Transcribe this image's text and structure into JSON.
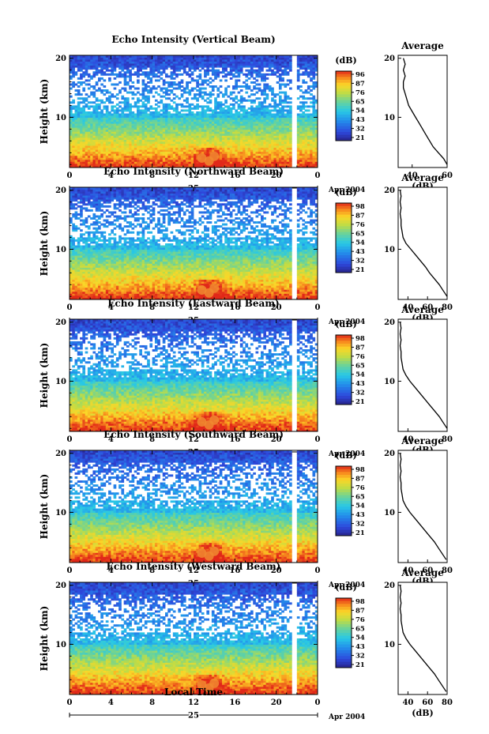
{
  "figure": {
    "date_label": "Apr 2004",
    "day_label": "25",
    "xlabel": "Local Time",
    "ylabel": "Height (km)",
    "colorbar_unit": "(dB)",
    "profile_title": "Average",
    "profile_xlabel": "(dB)"
  },
  "chart_data": [
    {
      "type": "heatmap",
      "title": "Echo Intensity (Vertical Beam)",
      "xlabel": "",
      "ylabel": "Height (km)",
      "x_ticks": [
        "0",
        "4",
        "8",
        "12",
        "16",
        "20",
        "0"
      ],
      "y_ticks": [
        "10",
        "20"
      ],
      "xlim": [
        0,
        24
      ],
      "ylim": [
        1.5,
        20.5
      ],
      "colorbar_ticks": [
        "96",
        "87",
        "76",
        "65",
        "54",
        "43",
        "32",
        "21"
      ],
      "colorbar_range": [
        21,
        96
      ],
      "profile": {
        "xlim": [
          32,
          60
        ],
        "x_ticks": [
          "40",
          "60"
        ],
        "y_ticks": [
          "10",
          "20"
        ],
        "heights": [
          2,
          3,
          4,
          5,
          6,
          7,
          8,
          9,
          10,
          11,
          12,
          13,
          14,
          15,
          16,
          17,
          18,
          19,
          20
        ],
        "values": [
          60,
          58,
          55,
          52,
          50,
          48,
          46,
          44,
          42,
          40,
          38,
          37,
          36,
          35,
          35,
          36,
          35,
          36,
          35
        ]
      }
    },
    {
      "type": "heatmap",
      "title": "Echo Intensity (Northward Beam)",
      "xlabel": "",
      "ylabel": "Height (km)",
      "x_ticks": [
        "0",
        "4",
        "8",
        "12",
        "16",
        "20",
        "0"
      ],
      "y_ticks": [
        "10",
        "20"
      ],
      "xlim": [
        0,
        24
      ],
      "ylim": [
        1.5,
        20.5
      ],
      "colorbar_ticks": [
        "98",
        "87",
        "76",
        "65",
        "54",
        "43",
        "32",
        "21"
      ],
      "colorbar_range": [
        21,
        98
      ],
      "profile": {
        "xlim": [
          30,
          80
        ],
        "x_ticks": [
          "40",
          "60",
          "80"
        ],
        "y_ticks": [
          "10",
          "20"
        ],
        "heights": [
          2,
          3,
          4,
          5,
          6,
          7,
          8,
          9,
          10,
          11,
          12,
          13,
          14,
          15,
          16,
          17,
          18,
          19,
          20
        ],
        "values": [
          80,
          76,
          72,
          67,
          62,
          58,
          53,
          48,
          43,
          38,
          35,
          34,
          33,
          33,
          32,
          33,
          32,
          33,
          32
        ]
      }
    },
    {
      "type": "heatmap",
      "title": "Echo Intensity (Eastward Beam)",
      "xlabel": "",
      "ylabel": "Height (km)",
      "x_ticks": [
        "0",
        "4",
        "8",
        "12",
        "16",
        "20",
        "0"
      ],
      "y_ticks": [
        "10",
        "20"
      ],
      "xlim": [
        0,
        24
      ],
      "ylim": [
        1.5,
        20.5
      ],
      "colorbar_ticks": [
        "98",
        "87",
        "76",
        "65",
        "54",
        "43",
        "32",
        "21"
      ],
      "colorbar_range": [
        21,
        98
      ],
      "profile": {
        "xlim": [
          30,
          80
        ],
        "x_ticks": [
          "40",
          "80"
        ],
        "y_ticks": [
          "10",
          "20"
        ],
        "heights": [
          2,
          3,
          4,
          5,
          6,
          7,
          8,
          9,
          10,
          11,
          12,
          13,
          14,
          15,
          16,
          17,
          18,
          19,
          20
        ],
        "values": [
          80,
          76,
          72,
          67,
          62,
          57,
          52,
          47,
          42,
          38,
          35,
          34,
          33,
          33,
          32,
          33,
          32,
          33,
          32
        ]
      }
    },
    {
      "type": "heatmap",
      "title": "Echo Intensity (Southward Beam)",
      "xlabel": "",
      "ylabel": "Height (km)",
      "x_ticks": [
        "0",
        "4",
        "8",
        "12",
        "16",
        "20",
        "0"
      ],
      "y_ticks": [
        "10",
        "20"
      ],
      "xlim": [
        0,
        24
      ],
      "ylim": [
        1.5,
        20.5
      ],
      "colorbar_ticks": [
        "98",
        "87",
        "76",
        "65",
        "54",
        "43",
        "32",
        "21"
      ],
      "colorbar_range": [
        21,
        98
      ],
      "profile": {
        "xlim": [
          30,
          80
        ],
        "x_ticks": [
          "40",
          "60",
          "80"
        ],
        "y_ticks": [
          "10",
          "20"
        ],
        "heights": [
          2,
          3,
          4,
          5,
          6,
          7,
          8,
          9,
          10,
          11,
          12,
          13,
          14,
          15,
          16,
          17,
          18,
          19,
          20
        ],
        "values": [
          79,
          75,
          71,
          67,
          62,
          57,
          52,
          47,
          42,
          38,
          35,
          34,
          33,
          33,
          32,
          33,
          32,
          33,
          32
        ]
      }
    },
    {
      "type": "heatmap",
      "title": "Echo Intensity (Westward Beam)",
      "xlabel": "Local Time",
      "ylabel": "Height (km)",
      "x_ticks": [
        "0",
        "4",
        "8",
        "12",
        "16",
        "20",
        "0"
      ],
      "y_ticks": [
        "10",
        "20"
      ],
      "xlim": [
        0,
        24
      ],
      "ylim": [
        1.5,
        20.5
      ],
      "colorbar_ticks": [
        "98",
        "87",
        "76",
        "65",
        "54",
        "43",
        "32",
        "21"
      ],
      "colorbar_range": [
        21,
        98
      ],
      "profile": {
        "xlim": [
          30,
          80
        ],
        "x_ticks": [
          "40",
          "60",
          "80"
        ],
        "y_ticks": [
          "10",
          "20"
        ],
        "heights": [
          2,
          3,
          4,
          5,
          6,
          7,
          8,
          9,
          10,
          11,
          12,
          13,
          14,
          15,
          16,
          17,
          18,
          19,
          20
        ],
        "values": [
          79,
          75,
          71,
          67,
          62,
          57,
          52,
          47,
          42,
          38,
          35,
          34,
          33,
          33,
          32,
          33,
          32,
          33,
          32
        ]
      }
    }
  ]
}
